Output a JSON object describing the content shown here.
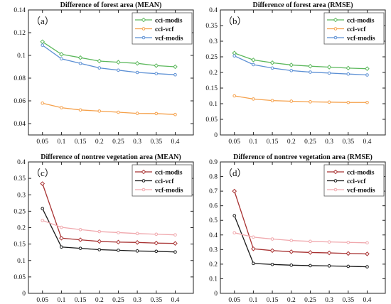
{
  "chart_data": [
    {
      "type": "line",
      "panel_label": "（a）",
      "title": "Difference of forest area (MEAN)",
      "x": [
        "0.05",
        "0.1",
        "0.15",
        "0.2",
        "0.25",
        "0.3",
        "0.35",
        "0.4"
      ],
      "ylim": [
        0.03,
        0.14
      ],
      "yticks": [
        "0.04",
        "0.06",
        "0.08",
        "0.1",
        "0.12",
        "0.14"
      ],
      "legend_position": "top-right",
      "series": [
        {
          "name": "cci-modis",
          "color": "#5cb85c",
          "marker": "diamond",
          "values": [
            0.112,
            0.101,
            0.098,
            0.095,
            0.094,
            0.093,
            0.091,
            0.09
          ]
        },
        {
          "name": "cci-vcf",
          "color": "#f5a04a",
          "marker": "circle",
          "values": [
            0.058,
            0.054,
            0.052,
            0.051,
            0.05,
            0.049,
            0.0488,
            0.048
          ]
        },
        {
          "name": "vcf-modis",
          "color": "#5b8fd4",
          "marker": "circle",
          "values": [
            0.109,
            0.097,
            0.093,
            0.089,
            0.087,
            0.085,
            0.084,
            0.083
          ]
        }
      ]
    },
    {
      "type": "line",
      "panel_label": "（b）",
      "title": "Difference of forest area (RMSE)",
      "x": [
        "0.05",
        "0.1",
        "0.15",
        "0.2",
        "0.25",
        "0.3",
        "0.35",
        "0.4"
      ],
      "ylim": [
        0,
        0.4
      ],
      "yticks": [
        "0",
        "0.05",
        "0.1",
        "0.15",
        "0.2",
        "0.25",
        "0.3",
        "0.35",
        "0.4"
      ],
      "legend_position": "top-right",
      "series": [
        {
          "name": "cci-modis",
          "color": "#5cb85c",
          "marker": "diamond",
          "values": [
            0.262,
            0.24,
            0.231,
            0.224,
            0.22,
            0.217,
            0.214,
            0.212
          ]
        },
        {
          "name": "cci-vcf",
          "color": "#f5a04a",
          "marker": "circle",
          "values": [
            0.125,
            0.115,
            0.11,
            0.108,
            0.106,
            0.105,
            0.104,
            0.104
          ]
        },
        {
          "name": "vcf-modis",
          "color": "#5b8fd4",
          "marker": "circle",
          "values": [
            0.253,
            0.225,
            0.214,
            0.206,
            0.201,
            0.198,
            0.195,
            0.192
          ]
        }
      ]
    },
    {
      "type": "line",
      "panel_label": "（c）",
      "title": "Difference of nontree vegetation area (MEAN)",
      "x": [
        "0.05",
        "0.1",
        "0.15",
        "0.2",
        "0.25",
        "0.3",
        "0.35",
        "0.4"
      ],
      "ylim": [
        0,
        0.4
      ],
      "yticks": [
        "0",
        "0.05",
        "0.1",
        "0.15",
        "0.2",
        "0.25",
        "0.3",
        "0.35",
        "0.4"
      ],
      "legend_position": "top-right",
      "series": [
        {
          "name": "cci-modis",
          "color": "#a83232",
          "marker": "diamond",
          "values": [
            0.334,
            0.168,
            0.163,
            0.158,
            0.156,
            0.155,
            0.153,
            0.152
          ]
        },
        {
          "name": "cci-vcf",
          "color": "#1a1a1a",
          "marker": "circle",
          "values": [
            0.258,
            0.141,
            0.137,
            0.133,
            0.131,
            0.129,
            0.128,
            0.126
          ]
        },
        {
          "name": "vcf-modis",
          "color": "#f0a8ad",
          "marker": "circle",
          "values": [
            0.222,
            0.201,
            0.194,
            0.188,
            0.185,
            0.182,
            0.18,
            0.178
          ]
        }
      ]
    },
    {
      "type": "line",
      "panel_label": "（d）",
      "title": "Difference of nontree vegetation area (RMSE)",
      "x": [
        "0.05",
        "0.1",
        "0.15",
        "0.2",
        "0.25",
        "0.3",
        "0.35",
        "0.4"
      ],
      "ylim": [
        0,
        0.9
      ],
      "yticks": [
        "0",
        "0.1",
        "0.2",
        "0.3",
        "0.4",
        "0.5",
        "0.6",
        "0.7",
        "0.8",
        "0.9"
      ],
      "legend_position": "top-right",
      "series": [
        {
          "name": "cci-modis",
          "color": "#a83232",
          "marker": "diamond",
          "values": [
            0.7,
            0.305,
            0.293,
            0.285,
            0.28,
            0.277,
            0.273,
            0.27
          ]
        },
        {
          "name": "cci-vcf",
          "color": "#1a1a1a",
          "marker": "circle",
          "values": [
            0.532,
            0.205,
            0.198,
            0.193,
            0.19,
            0.188,
            0.185,
            0.182
          ]
        },
        {
          "name": "vcf-modis",
          "color": "#f0a8ad",
          "marker": "circle",
          "values": [
            0.415,
            0.385,
            0.372,
            0.362,
            0.356,
            0.352,
            0.349,
            0.346
          ]
        }
      ]
    }
  ]
}
